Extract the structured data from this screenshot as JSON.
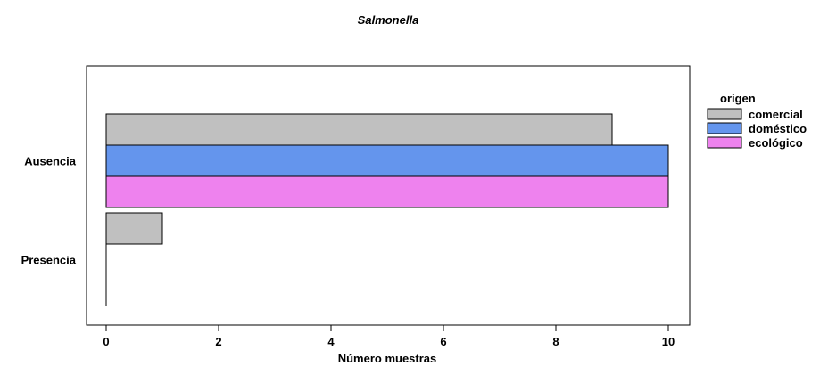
{
  "chart_data": {
    "type": "bar",
    "orientation": "horizontal",
    "title": "Salmonella",
    "xlabel": "Número muestras",
    "ylabel": "",
    "xlim": [
      0,
      10
    ],
    "xticks": [
      0,
      2,
      4,
      6,
      8,
      10
    ],
    "categories": [
      "Ausencia",
      "Presencia"
    ],
    "legend_title": "origen",
    "legend_position": "right",
    "grid": false,
    "series": [
      {
        "name": "comercial",
        "values": [
          9,
          1
        ],
        "color": "#c0c0c0"
      },
      {
        "name": "doméstico",
        "values": [
          10,
          0
        ],
        "color": "#6495ed"
      },
      {
        "name": "ecológico",
        "values": [
          10,
          0
        ],
        "color": "#ee82ee"
      }
    ]
  }
}
